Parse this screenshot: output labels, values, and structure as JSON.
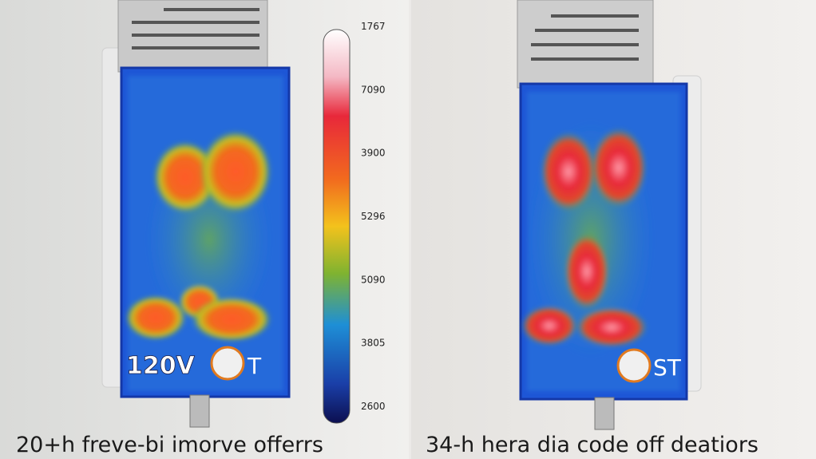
{
  "scale_labels": [
    "1767",
    "7090",
    "3900",
    "5296",
    "5090",
    "3805",
    "2600"
  ],
  "left_panel": {
    "badge_text": "120V",
    "logo_text": "T",
    "caption": "20+h freve-bi imorve offerrs"
  },
  "right_panel": {
    "logo_text": "ST",
    "caption": "34-h hera dia code off deatiors"
  }
}
